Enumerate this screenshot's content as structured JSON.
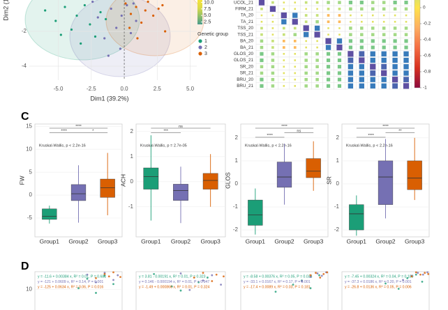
{
  "panel_labels": [
    "C",
    "D"
  ],
  "chart_data": [
    {
      "type": "pca",
      "xlabel": "Dim1 (39.2%)",
      "ylabel": "Dim2 (1",
      "xlim": [
        -7.2,
        5.5
      ],
      "ylim": [
        -4.8,
        -0.2
      ],
      "xticks": [
        {
          "value": -5,
          "label": "-5.0"
        },
        {
          "value": -2.5,
          "label": "-2.5"
        },
        {
          "value": 0,
          "label": "0.0"
        },
        {
          "value": 2.5,
          "label": "2.5"
        },
        {
          "value": 5,
          "label": "5.0"
        }
      ],
      "yticks": [
        -2,
        -4
      ],
      "legend_title": "Genetic group",
      "series": [
        {
          "name": "1",
          "color": "#1b9e77",
          "x": [
            -6.0,
            -5.2,
            -4.5,
            -4.0,
            -3.6,
            -3.0,
            -2.6,
            -2.2,
            -1.8,
            -1.4,
            -3.3,
            -4.8
          ],
          "y": [
            -0.8,
            -1.4,
            -0.6,
            -1.9,
            -1.1,
            -0.5,
            -1.6,
            -2.3,
            -0.9,
            -1.3,
            -2.7,
            -2.2
          ]
        },
        {
          "name": "2",
          "color": "#7570b3",
          "x": [
            -2.0,
            -1.5,
            -1.0,
            -0.6,
            -0.3,
            0.2,
            0.5,
            0.9,
            -1.2,
            -0.2,
            0.7,
            -2.4
          ],
          "y": [
            -1.2,
            -2.4,
            -0.7,
            -1.8,
            -3.0,
            -0.5,
            -2.1,
            -1.4,
            -3.4,
            -1.1,
            -0.4,
            -0.3
          ]
        },
        {
          "name": "3",
          "color": "#d95f02",
          "x": [
            0.1,
            0.5,
            0.9,
            1.3,
            1.8,
            2.2,
            2.6,
            3.1,
            1.0,
            1.6,
            0.4,
            2.9
          ],
          "y": [
            -0.4,
            -1.0,
            -0.6,
            -1.5,
            -0.3,
            -1.1,
            -0.7,
            -2.0,
            -2.4,
            -0.8,
            -1.8,
            -0.5
          ]
        }
      ],
      "colorbar": {
        "colors": [
          "#4a9a8c",
          "#8fbf6a",
          "#d9d94a",
          "#f5e33a"
        ],
        "lim": [
          1.6,
          10.9
        ],
        "ticks": [
          {
            "value": 10,
            "label": "10.0"
          },
          {
            "value": 7.5,
            "label": "7.5"
          },
          {
            "value": 5,
            "label": "5.0"
          },
          {
            "value": 2.5,
            "label": "2.5"
          }
        ]
      }
    },
    {
      "type": "corrplot",
      "labels": [
        "UCOL_21",
        "FIRM_21",
        "TA_20",
        "TA_21",
        "TSS_20",
        "TSS_21",
        "BA_20",
        "BA_21",
        "GLOS_20",
        "GLOS_21",
        "SR_20",
        "SR_21",
        "BRU_20",
        "BRU_21"
      ],
      "matrix": [
        [
          1,
          0.2,
          0.1,
          0.1,
          0.2,
          0.2,
          0.3,
          0.3,
          0.4,
          0.4,
          0.3,
          0.3,
          0.4,
          0.4
        ],
        [
          0.2,
          1,
          0.1,
          0.1,
          0.1,
          0.1,
          0.2,
          0.2,
          0.3,
          0.3,
          0.3,
          0.3,
          0.3,
          0.3
        ],
        [
          0.1,
          0.1,
          1,
          0.8,
          0.2,
          0.2,
          -0.2,
          -0.2,
          0.1,
          0.1,
          0.1,
          0.1,
          0.1,
          0.1
        ],
        [
          0.1,
          0.1,
          0.8,
          1,
          0.2,
          0.3,
          -0.2,
          -0.2,
          0.1,
          0.1,
          0.1,
          0.1,
          0.1,
          0.1
        ],
        [
          0.2,
          0.1,
          0.2,
          0.2,
          1,
          0.8,
          0.1,
          0.1,
          0.3,
          0.3,
          0.3,
          0.3,
          0.3,
          0.3
        ],
        [
          0.2,
          0.1,
          0.2,
          0.3,
          0.8,
          1,
          0.1,
          0.1,
          0.3,
          0.3,
          0.3,
          0.3,
          0.3,
          0.3
        ],
        [
          0.3,
          0.2,
          -0.2,
          -0.2,
          0.1,
          0.1,
          1,
          0.8,
          0.4,
          0.4,
          0.4,
          0.4,
          0.4,
          0.4
        ],
        [
          0.3,
          0.2,
          -0.2,
          -0.2,
          0.1,
          0.1,
          0.8,
          1,
          0.4,
          0.4,
          0.4,
          0.4,
          0.4,
          0.4
        ],
        [
          0.4,
          0.3,
          0.1,
          0.1,
          0.3,
          0.3,
          0.4,
          0.4,
          1,
          0.9,
          0.8,
          0.8,
          0.8,
          0.8
        ],
        [
          0.4,
          0.3,
          0.1,
          0.1,
          0.3,
          0.3,
          0.4,
          0.4,
          0.9,
          1,
          0.8,
          0.8,
          0.8,
          0.8
        ],
        [
          0.3,
          0.3,
          0.1,
          0.1,
          0.3,
          0.3,
          0.4,
          0.4,
          0.8,
          0.8,
          1,
          0.9,
          0.8,
          0.8
        ],
        [
          0.3,
          0.3,
          0.1,
          0.1,
          0.3,
          0.3,
          0.4,
          0.4,
          0.8,
          0.8,
          0.9,
          1,
          0.8,
          0.8
        ],
        [
          0.4,
          0.3,
          0.1,
          0.1,
          0.3,
          0.3,
          0.4,
          0.4,
          0.8,
          0.8,
          0.8,
          0.8,
          1,
          0.9
        ],
        [
          0.4,
          0.3,
          0.1,
          0.1,
          0.3,
          0.3,
          0.4,
          0.4,
          0.8,
          0.8,
          0.8,
          0.8,
          0.9,
          1
        ]
      ],
      "clim": [
        -1,
        1
      ],
      "colorscale": [
        "#8b0a3d",
        "#d7301f",
        "#f46d43",
        "#fdae61",
        "#fee34a",
        "#b8e186",
        "#52b788",
        "#2e86c1",
        "#5e4fa2"
      ],
      "cticks": [
        0,
        -0.2,
        -0.4,
        -0.6,
        -0.8,
        -1
      ]
    },
    {
      "type": "box",
      "ylabel": "FW",
      "annotation": "Kruskal-Wallis, p < 2.2e-16",
      "categories": [
        "Group1",
        "Group2",
        "Group3"
      ],
      "colors": [
        "#1b9e77",
        "#7570b3",
        "#d95f02"
      ],
      "ylim": [
        -9.1,
        15.5
      ],
      "yticks": [
        15,
        10,
        5,
        0,
        -5
      ],
      "q1": [
        -5.3,
        -1.2,
        -0.5
      ],
      "median": [
        -4.6,
        0.3,
        1.6
      ],
      "q3": [
        -3.0,
        2.3,
        3.5
      ],
      "whislo": [
        -6.2,
        -6.0,
        -4.4
      ],
      "whishi": [
        -2.3,
        6.5,
        9.2
      ],
      "comparisons": [
        {
          "pair": [
            "Group1",
            "Group3"
          ],
          "label": "****"
        },
        {
          "pair": [
            "Group1",
            "Group2"
          ],
          "label": "****"
        },
        {
          "pair": [
            "Group2",
            "Group3"
          ],
          "label": "*"
        }
      ]
    },
    {
      "type": "box",
      "ylabel": "ACH",
      "annotation": "Kruskal-Wallis, p = 2.7e-05",
      "categories": [
        "Group1",
        "Group2",
        "Group3"
      ],
      "colors": [
        "#1b9e77",
        "#7570b3",
        "#d95f02"
      ],
      "ylim": [
        -2.2,
        2.3
      ],
      "yticks": [
        2,
        1,
        0,
        -1
      ],
      "q1": [
        -0.3,
        -0.75,
        -0.3
      ],
      "median": [
        0.2,
        -0.35,
        0.05
      ],
      "q3": [
        0.55,
        -0.1,
        0.33
      ],
      "whislo": [
        -1.55,
        -1.65,
        -1.0
      ],
      "whishi": [
        1.85,
        0.6,
        1.1
      ],
      "comparisons": [
        {
          "pair": [
            "Group1",
            "Group3"
          ],
          "label": "ns"
        },
        {
          "pair": [
            "Group1",
            "Group2"
          ],
          "label": "***"
        }
      ]
    },
    {
      "type": "box",
      "ylabel": "GLOS",
      "annotation": "Kruskal-Wallis, p < 2.2e-16",
      "categories": [
        "Group1",
        "Group2",
        "Group3"
      ],
      "colors": [
        "#1b9e77",
        "#7570b3",
        "#d95f02"
      ],
      "ylim": [
        -2.3,
        2.6
      ],
      "yticks": [
        2,
        1,
        0,
        -1,
        -2
      ],
      "q1": [
        -1.8,
        -0.15,
        0.27
      ],
      "median": [
        -1.35,
        0.3,
        0.55
      ],
      "q3": [
        -0.7,
        0.95,
        1.1
      ],
      "whislo": [
        -2.2,
        -0.9,
        -0.3
      ],
      "whishi": [
        -0.2,
        1.75,
        1.85
      ],
      "comparisons": [
        {
          "pair": [
            "Group1",
            "Group3"
          ],
          "label": "****"
        },
        {
          "pair": [
            "Group2",
            "Group3"
          ],
          "label": "ns"
        },
        {
          "pair": [
            "Group1",
            "Group2"
          ],
          "label": "****"
        }
      ]
    },
    {
      "type": "box",
      "ylabel": "SR",
      "annotation": "Kruskal-Wallis, p < 2.2e-16",
      "categories": [
        "Group1",
        "Group2",
        "Group3"
      ],
      "colors": [
        "#1b9e77",
        "#7570b3",
        "#d95f02"
      ],
      "ylim": [
        -2.3,
        2.6
      ],
      "yticks": [
        2,
        1,
        0,
        -1,
        -2
      ],
      "q1": [
        -2.0,
        -0.9,
        -0.25
      ],
      "median": [
        -1.3,
        0.3,
        0.25
      ],
      "q3": [
        -0.9,
        1.0,
        1.0
      ],
      "whislo": [
        -2.25,
        -1.5,
        -0.7
      ],
      "whishi": [
        -0.5,
        1.95,
        2.0
      ],
      "comparisons": [
        {
          "pair": [
            "Group1",
            "Group3"
          ],
          "label": "****"
        },
        {
          "pair": [
            "Group2",
            "Group3"
          ],
          "label": "**"
        },
        {
          "pair": [
            "Group1",
            "Group2"
          ],
          "label": "****"
        }
      ]
    },
    {
      "type": "regression",
      "xlim": [
        0,
        10
      ],
      "ylim": [
        6.5,
        13
      ],
      "yticks": [
        10
      ],
      "series": [
        {
          "color": "#1b9e77",
          "equation": "y = -11.6 + 0.00384 x, R² = 0.01, P = 0.681",
          "x": [
            5,
            6,
            7,
            8,
            9
          ],
          "y": [
            10.2,
            11.8,
            9.4,
            12.3,
            10.9
          ]
        },
        {
          "color": "#7570b3",
          "equation": "y = -121 + 0.0609 x, R² = 0.14, P = 0.001",
          "x": [
            6,
            7,
            8,
            9,
            9.5
          ],
          "y": [
            12.5,
            11.2,
            12.8,
            11.6,
            12.4
          ]
        },
        {
          "color": "#d95f02",
          "equation": "y = -125 + 0.0634 x, R² = 0.06, P = 0.016",
          "x": [
            7,
            8,
            8.5,
            9,
            9.8
          ],
          "y": [
            11.9,
            12.6,
            12.2,
            12.9,
            12.1
          ]
        }
      ]
    },
    {
      "type": "regression",
      "xlim": [
        0,
        10
      ],
      "ylim": [
        6.5,
        13
      ],
      "series": [
        {
          "color": "#1b9e77",
          "equation": "y = 3.81 - 0.00191 x, R² = 0.01, P = 0.323",
          "x": [
            2,
            4,
            5,
            7,
            8
          ],
          "y": [
            12.6,
            10.5,
            9.8,
            11.2,
            12.0
          ]
        },
        {
          "color": "#7570b3",
          "equation": "y = 0.146 - 0.000194 x, R² = 0.01, P = 0.947",
          "x": [
            5,
            6,
            7.5,
            8.5,
            9.5
          ],
          "y": [
            12.7,
            9.9,
            11.5,
            12.4,
            10.8
          ]
        },
        {
          "color": "#d95f02",
          "equation": "y = -1.49 + 0.000866 x, R² = 0.01, P = 0.324",
          "x": [
            6.5,
            7.5,
            8.5,
            9,
            9.8
          ],
          "y": [
            12.0,
            12.8,
            11.4,
            12.5,
            12.2
          ]
        }
      ]
    },
    {
      "type": "regression",
      "xlim": [
        0,
        10
      ],
      "ylim": [
        6.5,
        13
      ],
      "series": [
        {
          "color": "#1b9e77",
          "equation": "y = -8.58 + 0.00376 x, R² = 0.05, P = 0.034",
          "x": [
            4,
            6,
            7,
            8,
            9
          ],
          "y": [
            9.6,
            10.8,
            11.5,
            10.2,
            12.4
          ]
        },
        {
          "color": "#7570b3",
          "equation": "y = -33.1 + 0.0167 x, R² = 0.17, P = 0.001",
          "x": [
            7,
            8,
            8.8,
            9.3,
            9.8
          ],
          "y": [
            11.4,
            12.1,
            12.7,
            12.3,
            12.9
          ]
        },
        {
          "color": "#d95f02",
          "equation": "y = -17.4 + 0.0089 x, R² = 0.03, P = 0.181",
          "x": [
            8,
            8.6,
            9.1,
            9.5,
            9.9
          ],
          "y": [
            12.4,
            12.8,
            12.0,
            12.6,
            12.9
          ]
        }
      ]
    },
    {
      "type": "regression",
      "xlim": [
        0,
        10
      ],
      "ylim": [
        6.5,
        13
      ],
      "series": [
        {
          "color": "#1b9e77",
          "equation": "y = -7.45 + 0.00324 x, R² = 0.04, P = 0.189",
          "x": [
            5,
            6.5,
            7.5,
            8.5,
            9.2
          ],
          "y": [
            11.0,
            10.1,
            11.9,
            12.5,
            11.3
          ]
        },
        {
          "color": "#7570b3",
          "equation": "y = -37.3 + 0.0186 x, R² = 0.20, P = 0.001",
          "x": [
            7,
            8,
            8.7,
            9.3,
            9.8
          ],
          "y": [
            11.6,
            12.3,
            12.8,
            12.5,
            12.9
          ]
        },
        {
          "color": "#d95f02",
          "equation": "y = -26.8 + 0.0136 x, R² = 0.05, P = 0.006",
          "x": [
            8,
            8.5,
            9,
            9.5,
            9.9
          ],
          "y": [
            12.2,
            12.9,
            12.5,
            12.8,
            12.6
          ]
        }
      ]
    }
  ]
}
